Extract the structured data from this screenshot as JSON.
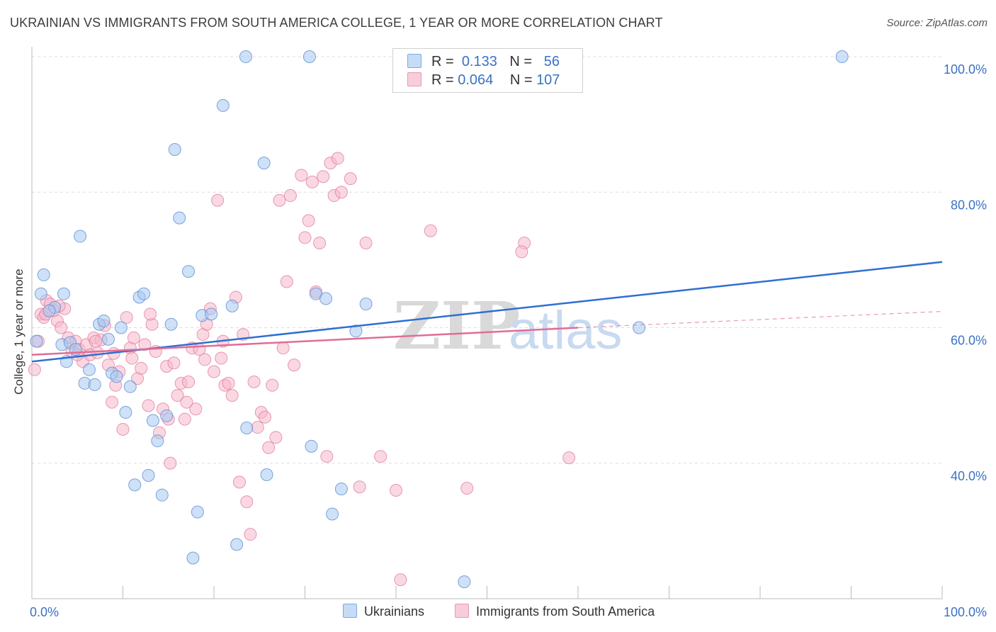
{
  "title": "UKRAINIAN VS IMMIGRANTS FROM SOUTH AMERICA COLLEGE, 1 YEAR OR MORE CORRELATION CHART",
  "source": "Source: ZipAtlas.com",
  "watermark": {
    "zip": "ZIP",
    "atlas": "atlas"
  },
  "legend": {
    "r_label": "R =",
    "n_label": "N =",
    "rows": [
      {
        "r": "0.133",
        "n": "56",
        "color": "#a8c8f0"
      },
      {
        "r": "0.064",
        "n": "107",
        "color": "#f5b8cb"
      }
    ]
  },
  "bottom_legend": [
    {
      "label": "Ukrainians",
      "color": "#a8c8f0"
    },
    {
      "label": "Immigrants from South America",
      "color": "#f5b8cb"
    }
  ],
  "colors": {
    "blue_fill": "#a8c8f0",
    "blue_stroke": "#5b8fd6",
    "blue_line": "#2f6fd0",
    "pink_fill": "#f5b8cb",
    "pink_stroke": "#e27fa0",
    "pink_line": "#e06d96",
    "grid": "#dddddd",
    "axis_label": "#3a72c4"
  },
  "chart_data": {
    "type": "scatter",
    "title": "UKRAINIAN VS IMMIGRANTS FROM SOUTH AMERICA COLLEGE, 1 YEAR OR MORE CORRELATION CHART",
    "xlabel": "",
    "ylabel": "College, 1 year or more",
    "xlim": [
      0,
      100
    ],
    "ylim": [
      20,
      100
    ],
    "x_tick_labels": [
      {
        "value": 0,
        "label": "0.0%"
      },
      {
        "value": 100,
        "label": "100.0%"
      }
    ],
    "y_tick_labels": [
      {
        "value": 40,
        "label": "40.0%"
      },
      {
        "value": 60,
        "label": "60.0%"
      },
      {
        "value": 80,
        "label": "80.0%"
      },
      {
        "value": 100,
        "label": "100.0%"
      }
    ],
    "grid": true,
    "legend_placement": "top-center",
    "series": [
      {
        "name": "Ukrainians",
        "r": 0.133,
        "n": 56,
        "trend": {
          "x": [
            0,
            100
          ],
          "y": [
            55.0,
            69.7
          ],
          "style": "solid"
        },
        "points": [
          [
            0.5,
            58.0
          ],
          [
            1.0,
            65.0
          ],
          [
            1.3,
            67.8
          ],
          [
            2.5,
            63.0
          ],
          [
            3.3,
            57.5
          ],
          [
            3.5,
            65.0
          ],
          [
            3.8,
            55.0
          ],
          [
            4.2,
            57.8
          ],
          [
            4.8,
            56.8
          ],
          [
            5.3,
            73.5
          ],
          [
            5.8,
            51.8
          ],
          [
            6.3,
            53.8
          ],
          [
            6.9,
            51.6
          ],
          [
            7.4,
            60.5
          ],
          [
            7.9,
            61.0
          ],
          [
            8.4,
            58.3
          ],
          [
            8.8,
            53.3
          ],
          [
            9.3,
            52.8
          ],
          [
            9.8,
            60.0
          ],
          [
            10.3,
            47.5
          ],
          [
            10.8,
            51.3
          ],
          [
            11.3,
            36.8
          ],
          [
            11.8,
            64.5
          ],
          [
            12.3,
            65.0
          ],
          [
            12.8,
            38.2
          ],
          [
            13.3,
            46.3
          ],
          [
            13.8,
            43.3
          ],
          [
            14.3,
            35.3
          ],
          [
            14.8,
            47.0
          ],
          [
            15.3,
            60.5
          ],
          [
            15.7,
            86.3
          ],
          [
            16.2,
            76.2
          ],
          [
            17.2,
            68.3
          ],
          [
            17.7,
            26.0
          ],
          [
            18.2,
            32.8
          ],
          [
            18.7,
            61.8
          ],
          [
            19.7,
            62.0
          ],
          [
            21.0,
            92.8
          ],
          [
            22.0,
            63.2
          ],
          [
            22.5,
            28.0
          ],
          [
            23.5,
            100.0
          ],
          [
            23.6,
            45.2
          ],
          [
            25.5,
            84.3
          ],
          [
            25.8,
            38.3
          ],
          [
            30.5,
            100.0
          ],
          [
            30.7,
            42.5
          ],
          [
            31.2,
            65.0
          ],
          [
            32.3,
            64.3
          ],
          [
            33.0,
            32.5
          ],
          [
            34.0,
            36.2
          ],
          [
            35.6,
            59.5
          ],
          [
            36.7,
            63.5
          ],
          [
            47.5,
            22.5
          ],
          [
            66.7,
            60.0
          ],
          [
            89.0,
            100.0
          ],
          [
            1.9,
            62.5
          ]
        ]
      },
      {
        "name": "Immigrants from South America",
        "r": 0.064,
        "n": 107,
        "trend": {
          "x": [
            0,
            60
          ],
          "y": [
            56.0,
            60.0
          ],
          "style": "solid",
          "extension": {
            "x": [
              60,
              100
            ],
            "y": [
              60.0,
              62.4
            ],
            "style": "dashed"
          }
        },
        "points": [
          [
            0.3,
            53.8
          ],
          [
            0.7,
            58.0
          ],
          [
            1.0,
            62.0
          ],
          [
            1.3,
            61.5
          ],
          [
            1.6,
            64.0
          ],
          [
            2.0,
            63.5
          ],
          [
            2.4,
            62.5
          ],
          [
            2.8,
            61.0
          ],
          [
            3.2,
            60.0
          ],
          [
            3.6,
            62.8
          ],
          [
            4.0,
            58.5
          ],
          [
            4.4,
            56.5
          ],
          [
            4.8,
            58.0
          ],
          [
            5.2,
            56.8
          ],
          [
            5.6,
            55.0
          ],
          [
            6.0,
            57.5
          ],
          [
            6.4,
            56.0
          ],
          [
            6.8,
            58.5
          ],
          [
            7.2,
            56.3
          ],
          [
            7.6,
            58.2
          ],
          [
            8.0,
            60.3
          ],
          [
            8.4,
            54.5
          ],
          [
            8.8,
            49.0
          ],
          [
            9.2,
            51.5
          ],
          [
            9.6,
            53.5
          ],
          [
            10.0,
            45.0
          ],
          [
            10.4,
            61.5
          ],
          [
            10.8,
            57.0
          ],
          [
            11.2,
            58.5
          ],
          [
            11.6,
            52.5
          ],
          [
            12.0,
            54.0
          ],
          [
            12.4,
            57.5
          ],
          [
            12.8,
            48.5
          ],
          [
            13.2,
            60.5
          ],
          [
            13.6,
            56.5
          ],
          [
            14.0,
            44.5
          ],
          [
            14.4,
            48.0
          ],
          [
            14.8,
            54.3
          ],
          [
            15.2,
            40.0
          ],
          [
            15.6,
            54.8
          ],
          [
            16.0,
            50.0
          ],
          [
            16.4,
            51.8
          ],
          [
            16.8,
            46.5
          ],
          [
            17.2,
            52.0
          ],
          [
            17.6,
            57.0
          ],
          [
            18.0,
            48.0
          ],
          [
            18.4,
            56.8
          ],
          [
            18.8,
            59.0
          ],
          [
            19.2,
            60.5
          ],
          [
            19.6,
            62.8
          ],
          [
            20.0,
            53.5
          ],
          [
            20.4,
            78.8
          ],
          [
            20.8,
            55.5
          ],
          [
            21.2,
            51.5
          ],
          [
            21.6,
            51.8
          ],
          [
            22.0,
            50.0
          ],
          [
            22.4,
            64.5
          ],
          [
            22.8,
            37.2
          ],
          [
            23.2,
            59.0
          ],
          [
            23.6,
            34.3
          ],
          [
            24.0,
            29.5
          ],
          [
            24.4,
            52.0
          ],
          [
            24.8,
            45.3
          ],
          [
            25.2,
            47.5
          ],
          [
            25.6,
            46.8
          ],
          [
            26.0,
            42.3
          ],
          [
            26.4,
            51.5
          ],
          [
            26.8,
            43.8
          ],
          [
            27.2,
            78.8
          ],
          [
            27.6,
            57.0
          ],
          [
            28.0,
            66.8
          ],
          [
            28.4,
            79.5
          ],
          [
            28.8,
            54.5
          ],
          [
            29.6,
            82.5
          ],
          [
            30.0,
            73.3
          ],
          [
            30.4,
            75.8
          ],
          [
            30.8,
            81.5
          ],
          [
            31.2,
            65.3
          ],
          [
            31.6,
            72.5
          ],
          [
            32.0,
            82.3
          ],
          [
            32.4,
            41.0
          ],
          [
            32.8,
            84.3
          ],
          [
            33.2,
            79.5
          ],
          [
            33.6,
            85.0
          ],
          [
            34.0,
            80.0
          ],
          [
            35.0,
            82.0
          ],
          [
            36.0,
            36.5
          ],
          [
            36.7,
            72.5
          ],
          [
            38.3,
            41.0
          ],
          [
            40.0,
            36.0
          ],
          [
            40.5,
            22.8
          ],
          [
            43.8,
            74.3
          ],
          [
            47.8,
            36.3
          ],
          [
            54.1,
            72.5
          ],
          [
            53.8,
            71.2
          ],
          [
            59.0,
            40.8
          ],
          [
            1.5,
            62.0
          ],
          [
            3.0,
            63.2
          ],
          [
            5.0,
            56.0
          ],
          [
            7.0,
            58.0
          ],
          [
            9.0,
            56.2
          ],
          [
            11.0,
            55.5
          ],
          [
            13.0,
            62.0
          ],
          [
            15.0,
            46.5
          ],
          [
            17.0,
            49.0
          ],
          [
            19.0,
            55.3
          ],
          [
            21.0,
            58.0
          ]
        ]
      }
    ]
  }
}
